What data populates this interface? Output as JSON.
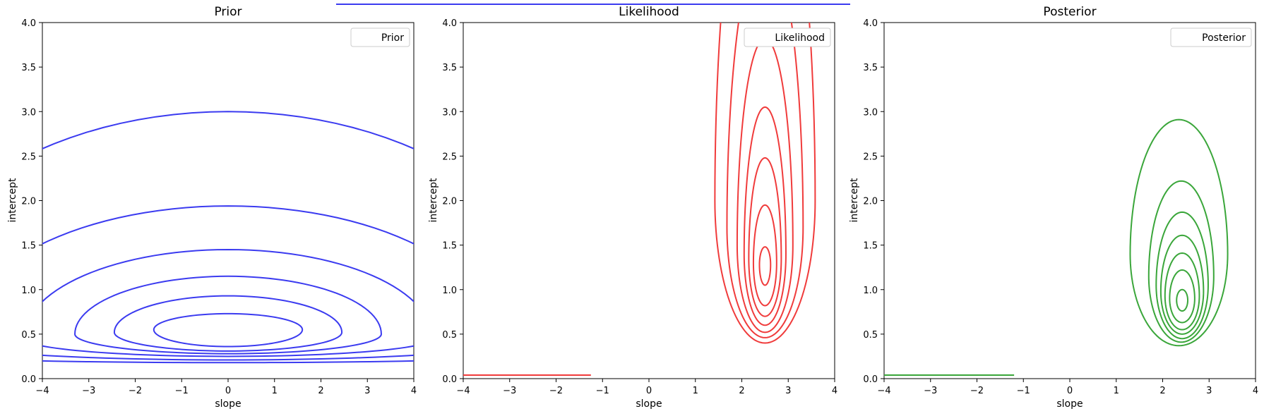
{
  "colors": {
    "prior": "#3b3bf0",
    "likelihood": "#f03b3b",
    "posterior": "#3aa63a",
    "axis": "#000000"
  },
  "chart_data": [
    {
      "type": "contour",
      "title": "Prior",
      "xlabel": "slope",
      "ylabel": "intercept",
      "xlim": [
        -4,
        4
      ],
      "ylim": [
        0,
        4
      ],
      "xticks": [
        "−4",
        "−3",
        "−2",
        "−1",
        "0",
        "1",
        "2",
        "3",
        "4"
      ],
      "yticks": [
        "0.0",
        "0.5",
        "1.0",
        "1.5",
        "2.0",
        "2.5",
        "3.0",
        "3.5",
        "4.0"
      ],
      "legend": {
        "label": "Prior",
        "position": "upper right"
      },
      "color_key": "prior",
      "contours": [
        {
          "center": [
            0,
            0.55
          ],
          "x_half_width": 1.6,
          "top": 0.73,
          "bottom": 0.36
        },
        {
          "center": [
            0,
            0.52
          ],
          "x_half_width": 2.45,
          "top": 0.93,
          "bottom": 0.31
        },
        {
          "center": [
            0,
            0.5
          ],
          "x_half_width": 3.3,
          "top": 1.15,
          "bottom": 0.28
        },
        {
          "center": [
            0,
            0.45
          ],
          "x_half_width": 4.4,
          "top": 1.45,
          "bottom": 0.25
        },
        {
          "center": [
            0,
            0.4
          ],
          "x_half_width": 5.8,
          "top": 1.94,
          "bottom": 0.21
        },
        {
          "center": [
            0,
            0.3
          ],
          "x_half_width": 7.5,
          "top": 3.0,
          "bottom": 0.18
        }
      ]
    },
    {
      "type": "contour",
      "title": "Likelihood",
      "xlabel": "slope",
      "ylabel": "intercept",
      "xlim": [
        -4,
        4
      ],
      "ylim": [
        0,
        4
      ],
      "xticks": [
        "−4",
        "−3",
        "−2",
        "−1",
        "0",
        "1",
        "2",
        "3",
        "4"
      ],
      "yticks": [
        "0.0",
        "0.5",
        "1.0",
        "1.5",
        "2.0",
        "2.5",
        "3.0",
        "3.5",
        "4.0"
      ],
      "legend": {
        "label": "Likelihood",
        "position": "upper right"
      },
      "color_key": "likelihood",
      "contours": [
        {
          "center": [
            2.5,
            1.28
          ],
          "x_half_width": 0.12,
          "top": 1.48,
          "bottom": 1.05
        },
        {
          "center": [
            2.5,
            1.3
          ],
          "x_half_width": 0.25,
          "top": 1.95,
          "bottom": 0.82
        },
        {
          "center": [
            2.5,
            1.35
          ],
          "x_half_width": 0.35,
          "top": 2.48,
          "bottom": 0.7
        },
        {
          "center": [
            2.5,
            1.4
          ],
          "x_half_width": 0.45,
          "top": 3.05,
          "bottom": 0.6
        },
        {
          "center": [
            2.5,
            1.5
          ],
          "x_half_width": 0.6,
          "top": 3.82,
          "bottom": 0.52
        },
        {
          "center": [
            2.5,
            1.7
          ],
          "x_half_width": 0.82,
          "top": 4.9,
          "bottom": 0.46
        },
        {
          "center": [
            2.5,
            2.0
          ],
          "x_half_width": 1.08,
          "top": 6.3,
          "bottom": 0.4
        }
      ],
      "baseline_segment": {
        "x": [
          -4,
          -1.25
        ],
        "y": 0.04
      }
    },
    {
      "type": "contour",
      "title": "Posterior",
      "xlabel": "slope",
      "ylabel": "intercept",
      "xlim": [
        -4,
        4
      ],
      "ylim": [
        0,
        4
      ],
      "xticks": [
        "−4",
        "−3",
        "−2",
        "−1",
        "0",
        "1",
        "2",
        "3",
        "4"
      ],
      "yticks": [
        "0.0",
        "0.5",
        "1.0",
        "1.5",
        "2.0",
        "2.5",
        "3.0",
        "3.5",
        "4.0"
      ],
      "legend": {
        "label": "Posterior",
        "position": "upper right"
      },
      "color_key": "posterior",
      "contours": [
        {
          "center": [
            2.42,
            0.88
          ],
          "x_half_width": 0.12,
          "top": 1.0,
          "bottom": 0.76
        },
        {
          "center": [
            2.42,
            0.9
          ],
          "x_half_width": 0.27,
          "top": 1.22,
          "bottom": 0.63
        },
        {
          "center": [
            2.42,
            0.93
          ],
          "x_half_width": 0.37,
          "top": 1.41,
          "bottom": 0.55
        },
        {
          "center": [
            2.42,
            0.98
          ],
          "x_half_width": 0.46,
          "top": 1.61,
          "bottom": 0.5
        },
        {
          "center": [
            2.42,
            1.05
          ],
          "x_half_width": 0.56,
          "top": 1.87,
          "bottom": 0.45
        },
        {
          "center": [
            2.4,
            1.15
          ],
          "x_half_width": 0.7,
          "top": 2.22,
          "bottom": 0.41
        },
        {
          "center": [
            2.35,
            1.4
          ],
          "x_half_width": 1.05,
          "top": 2.91,
          "bottom": 0.37
        }
      ],
      "baseline_segment": {
        "x": [
          -4,
          -1.2
        ],
        "y": 0.04
      }
    }
  ]
}
